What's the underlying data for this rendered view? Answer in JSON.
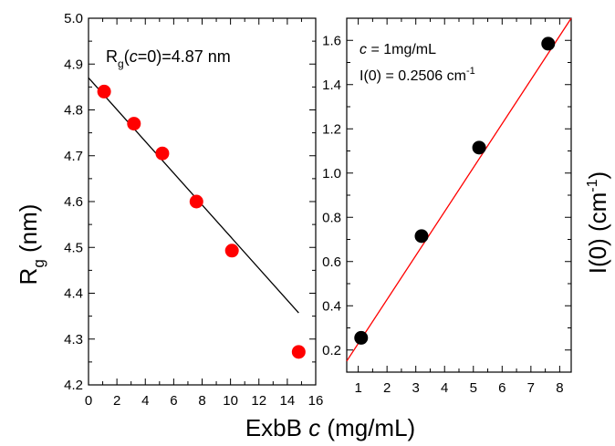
{
  "chart_data": [
    {
      "type": "scatter",
      "ylabel": "R",
      "ylabel_sub": "g",
      "ylabel_unit": " (nm)",
      "xlim": [
        0,
        16
      ],
      "ylim": [
        4.2,
        5.0
      ],
      "xticks": [
        "0",
        "2",
        "4",
        "6",
        "8",
        "10",
        "12",
        "14",
        "16"
      ],
      "yticks": [
        "4.2",
        "4.3",
        "4.4",
        "4.5",
        "4.6",
        "4.7",
        "4.8",
        "4.9",
        "5.0"
      ],
      "annotation": {
        "prefix": "R",
        "sub": "g",
        "paren_open": "(",
        "var": "c",
        "rest": "=0)=4.87 nm"
      },
      "points_color": "#ff0000",
      "fit_color": "#000000",
      "series": [
        {
          "x": [
            1.1,
            3.2,
            5.2,
            7.6,
            10.1,
            14.8
          ],
          "y": [
            4.84,
            4.77,
            4.705,
            4.6,
            4.493,
            4.272
          ]
        }
      ],
      "fit": {
        "x": [
          0,
          14.8
        ],
        "y": [
          4.87,
          4.357
        ]
      }
    },
    {
      "type": "scatter",
      "ylabel": "I(0) (cm",
      "ylabel_sup": "-1",
      "ylabel_close": ")",
      "xlim": [
        0.6,
        8.4
      ],
      "ylim": [
        0.1,
        1.7
      ],
      "xticks": [
        "1",
        "2",
        "3",
        "4",
        "5",
        "6",
        "7",
        "8"
      ],
      "yticks": [
        "0.2",
        "0.4",
        "0.6",
        "0.8",
        "1.0",
        "1.2",
        "1.4",
        "1.6"
      ],
      "annotation": {
        "line1_var": "c",
        "line1_rest": " = 1mg/mL",
        "line2": "I(0) = 0.2506 cm",
        "line2_sup": "-1"
      },
      "points_color": "#000000",
      "fit_color": "#ff0000",
      "series": [
        {
          "x": [
            1.1,
            3.2,
            5.2,
            7.6
          ],
          "y": [
            0.255,
            0.715,
            1.115,
            1.585
          ]
        }
      ],
      "fit": {
        "x": [
          0.6,
          8.4
        ],
        "y": [
          0.15,
          1.7
        ]
      }
    }
  ],
  "xlabel": {
    "prefix": "ExbB ",
    "var": "c",
    "suffix": " (mg/mL)"
  }
}
